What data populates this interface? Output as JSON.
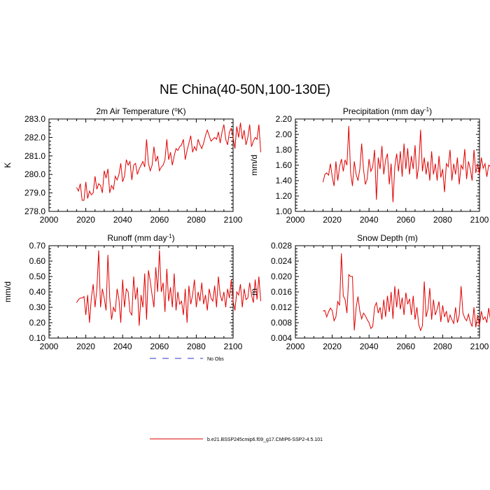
{
  "figure_title": "NE China(40-50N,100-130E)",
  "chart_data": [
    {
      "type": "line",
      "title": "2m Air Temperature (",
      "title_sup": "o",
      "title_after": "K)",
      "ylabel": "K",
      "xlim": [
        2000,
        2100
      ],
      "ylim": [
        278.0,
        283.0
      ],
      "xticks": [
        "2000",
        "2020",
        "2040",
        "2060",
        "2080",
        "2100"
      ],
      "yticks": [
        "278.0",
        "279.0",
        "280.0",
        "281.0",
        "282.0",
        "283.0"
      ],
      "x_start": 2015,
      "values": [
        279.3,
        279.1,
        279.5,
        278.6,
        278.6,
        279.6,
        278.7,
        279.1,
        278.9,
        279.0,
        279.9,
        279.2,
        279.5,
        279.4,
        279.0,
        280.2,
        279.8,
        280.3,
        279.0,
        279.4,
        279.2,
        279.9,
        279.7,
        280.0,
        280.6,
        279.6,
        279.9,
        280.8,
        280.5,
        280.7,
        279.7,
        280.5,
        280.6,
        280.0,
        280.3,
        280.5,
        280.7,
        280.4,
        281.9,
        280.6,
        280.2,
        280.5,
        281.5,
        280.7,
        281.0,
        280.2,
        280.4,
        280.5,
        280.8,
        281.9,
        280.8,
        281.2,
        280.5,
        281.0,
        281.4,
        281.3,
        281.5,
        281.6,
        281.9,
        280.8,
        281.3,
        281.7,
        282.1,
        281.2,
        281.5,
        281.3,
        281.9,
        281.6,
        281.4,
        281.7,
        282.1,
        282.4,
        282.1,
        281.8,
        281.9,
        282.0,
        281.9,
        282.3,
        281.7,
        282.3,
        282.7,
        281.9,
        281.6,
        282.3,
        282.5,
        282.0,
        281.4,
        282.6,
        282.0,
        282.8,
        281.9,
        282.4,
        281.6,
        282.0,
        282.7,
        281.5,
        281.8,
        282.0,
        281.9,
        282.7,
        281.2
      ]
    },
    {
      "type": "line",
      "title": "Precipitation (mm day",
      "title_sup": "-1",
      "title_after": ")",
      "ylabel": "mm/d",
      "xlim": [
        2000,
        2100
      ],
      "ylim": [
        1.0,
        2.2
      ],
      "xticks": [
        "2000",
        "2020",
        "2040",
        "2060",
        "2080",
        "2100"
      ],
      "yticks": [
        "1.00",
        "1.20",
        "1.40",
        "1.60",
        "1.80",
        "2.00",
        "2.20"
      ],
      "x_start": 2015,
      "values": [
        1.38,
        1.48,
        1.5,
        1.47,
        1.62,
        1.45,
        1.33,
        1.65,
        1.4,
        1.58,
        1.68,
        1.52,
        1.67,
        1.6,
        2.11,
        1.5,
        1.33,
        1.65,
        1.48,
        1.4,
        1.55,
        1.88,
        1.55,
        1.35,
        1.42,
        1.68,
        1.52,
        1.58,
        1.8,
        1.15,
        1.7,
        1.55,
        1.85,
        1.48,
        1.67,
        1.75,
        1.35,
        1.62,
        1.12,
        1.58,
        1.75,
        1.52,
        1.78,
        1.45,
        1.88,
        1.55,
        1.82,
        1.48,
        1.72,
        1.55,
        1.86,
        1.42,
        1.6,
        2.06,
        1.52,
        1.7,
        1.48,
        1.65,
        1.4,
        1.78,
        1.48,
        1.62,
        1.4,
        1.72,
        1.44,
        1.55,
        1.25,
        1.62,
        1.58,
        1.8,
        1.4,
        1.62,
        1.48,
        1.7,
        1.35,
        1.6,
        1.55,
        1.81,
        1.42,
        1.65,
        1.55,
        1.4,
        1.8,
        1.5,
        1.62,
        1.48,
        1.7,
        1.56,
        1.62,
        1.45,
        1.6,
        1.58,
        1.78,
        1.4,
        1.85,
        1.33,
        1.52,
        1.7,
        1.48,
        1.81,
        1.45
      ]
    },
    {
      "type": "line",
      "title": "Runoff (mm day",
      "title_sup": "-1",
      "title_after": ")",
      "ylabel": "mm/d",
      "xlim": [
        2000,
        2100
      ],
      "ylim": [
        0.1,
        0.7
      ],
      "xticks": [
        "2000",
        "2020",
        "2040",
        "2060",
        "2080",
        "2100"
      ],
      "yticks": [
        "0.10",
        "0.20",
        "0.30",
        "0.40",
        "0.50",
        "0.60",
        "0.70"
      ],
      "x_start": 2015,
      "values": [
        0.33,
        0.35,
        0.36,
        0.36,
        0.37,
        0.25,
        0.38,
        0.2,
        0.36,
        0.45,
        0.3,
        0.42,
        0.67,
        0.3,
        0.42,
        0.36,
        0.28,
        0.64,
        0.36,
        0.22,
        0.3,
        0.27,
        0.42,
        0.35,
        0.2,
        0.48,
        0.3,
        0.42,
        0.4,
        0.27,
        0.25,
        0.5,
        0.35,
        0.43,
        0.18,
        0.38,
        0.3,
        0.52,
        0.22,
        0.54,
        0.47,
        0.38,
        0.3,
        0.56,
        0.4,
        0.67,
        0.4,
        0.46,
        0.27,
        0.55,
        0.34,
        0.43,
        0.3,
        0.52,
        0.28,
        0.4,
        0.32,
        0.34,
        0.25,
        0.42,
        0.2,
        0.44,
        0.32,
        0.38,
        0.48,
        0.3,
        0.4,
        0.34,
        0.46,
        0.32,
        0.38,
        0.28,
        0.42,
        0.36,
        0.34,
        0.44,
        0.3,
        0.5,
        0.38,
        0.34,
        0.4,
        0.3,
        0.42,
        0.36,
        0.48,
        0.34,
        0.28,
        0.4,
        0.38,
        0.45,
        0.3,
        0.42,
        0.35,
        0.36,
        0.46,
        0.38,
        0.33,
        0.48,
        0.35,
        0.5,
        0.34
      ]
    },
    {
      "type": "line",
      "title": "Snow Depth (m)",
      "title_sup": "",
      "title_after": "",
      "ylabel": "m",
      "xlim": [
        2000,
        2100
      ],
      "ylim": [
        0.004,
        0.028
      ],
      "xticks": [
        "2000",
        "2020",
        "2040",
        "2060",
        "2080",
        "2100"
      ],
      "yticks": [
        "0.004",
        "0.008",
        "0.012",
        "0.016",
        "0.020",
        "0.024",
        "0.028"
      ],
      "x_start": 2015,
      "values": [
        0.011,
        0.0112,
        0.0095,
        0.0108,
        0.0118,
        0.0112,
        0.0085,
        0.0095,
        0.0135,
        0.0125,
        0.026,
        0.015,
        0.014,
        0.0105,
        0.0205,
        0.02,
        0.02,
        0.006,
        0.012,
        0.0148,
        0.011,
        0.009,
        0.0105,
        0.0098,
        0.0088,
        0.008,
        0.0065,
        0.007,
        0.012,
        0.0132,
        0.0105,
        0.012,
        0.0088,
        0.014,
        0.0095,
        0.015,
        0.0108,
        0.016,
        0.009,
        0.0175,
        0.012,
        0.0168,
        0.0115,
        0.0145,
        0.01,
        0.0158,
        0.0128,
        0.0142,
        0.01,
        0.015,
        0.0088,
        0.012,
        0.0075,
        0.006,
        0.0072,
        0.0187,
        0.0095,
        0.0115,
        0.017,
        0.0088,
        0.014,
        0.01,
        0.0115,
        0.0135,
        0.0082,
        0.0125,
        0.0095,
        0.011,
        0.008,
        0.01,
        0.0088,
        0.0078,
        0.012,
        0.008,
        0.01,
        0.0175,
        0.0105,
        0.0092,
        0.0085,
        0.0102,
        0.0082,
        0.007,
        0.012,
        0.0068,
        0.01,
        0.0072,
        0.011,
        0.0088,
        0.0095,
        0.008,
        0.0118,
        0.0085,
        0.01,
        0.009,
        0.012,
        0.0078,
        0.0105,
        0.0068,
        0.011,
        0.0075,
        0.009
      ]
    }
  ],
  "legend": {
    "obs_label": "No Obs",
    "model_label": "b.e21.BSSP245cmip6.f09_g17.CMIP6-SSP2-4.5.101",
    "obs_color": "#3333cc",
    "model_color": "#e00000"
  }
}
